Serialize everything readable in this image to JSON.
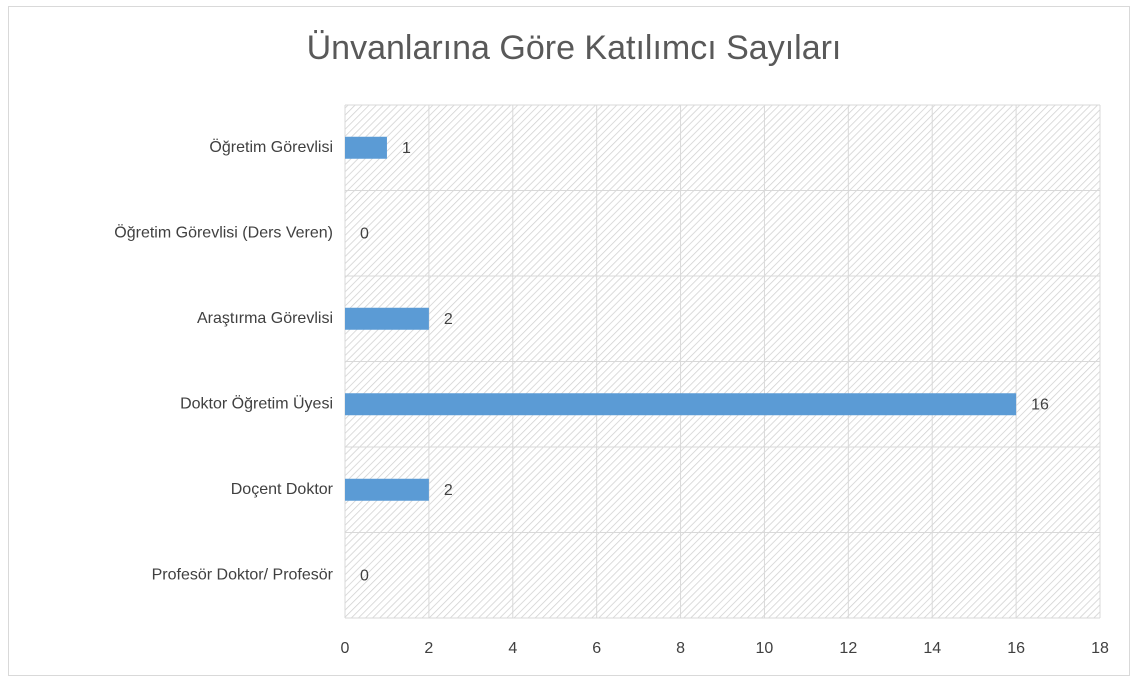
{
  "chart_data": {
    "type": "bar",
    "orientation": "horizontal",
    "title": "Ünvanlarına Göre Katılımcı Sayıları",
    "categories": [
      "Öğretim Görevlisi",
      "Öğretim Görevlisi (Ders Veren)",
      "Araştırma Görevlisi",
      "Doktor Öğretim Üyesi",
      "Doçent Doktor",
      "Profesör Doktor/ Profesör"
    ],
    "values": [
      1,
      0,
      2,
      16,
      2,
      0
    ],
    "color": "#5b9bd5",
    "xlim": [
      0,
      18
    ],
    "xticks": [
      0,
      2,
      4,
      6,
      8,
      10,
      12,
      14,
      16,
      18
    ],
    "grid": true
  }
}
